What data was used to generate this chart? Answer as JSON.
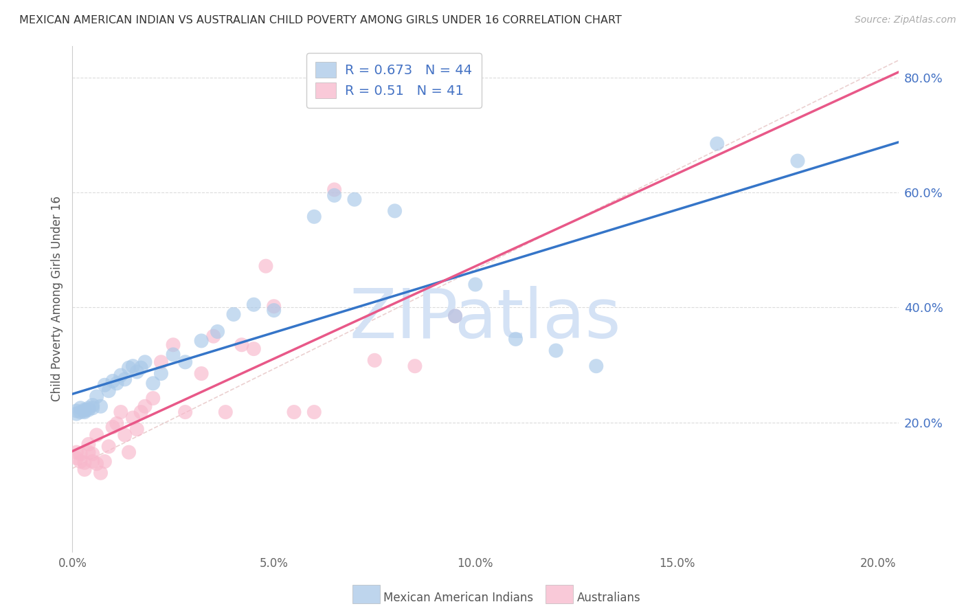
{
  "title": "MEXICAN AMERICAN INDIAN VS AUSTRALIAN CHILD POVERTY AMONG GIRLS UNDER 16 CORRELATION CHART",
  "source": "Source: ZipAtlas.com",
  "ylabel": "Child Poverty Among Girls Under 16",
  "legend_blue_label": "Mexican American Indians",
  "legend_pink_label": "Australians",
  "R_blue": 0.673,
  "N_blue": 44,
  "R_pink": 0.51,
  "N_pink": 41,
  "blue_scatter_color": "#a8c8e8",
  "pink_scatter_color": "#f8b8cc",
  "blue_line_color": "#3575c8",
  "pink_line_color": "#e85888",
  "diag_line_color": "#e8c8c8",
  "watermark": "ZIPatlas",
  "watermark_color": "#d4e2f5",
  "xlim": [
    0.0,
    0.205
  ],
  "ylim": [
    -0.025,
    0.855
  ],
  "yticks_right": [
    0.2,
    0.4,
    0.6,
    0.8
  ],
  "xtick_vals": [
    0.0,
    0.05,
    0.1,
    0.15,
    0.2
  ],
  "background_color": "#ffffff",
  "grid_color": "#cccccc",
  "blue_x": [
    0.001,
    0.001,
    0.002,
    0.002,
    0.003,
    0.003,
    0.003,
    0.004,
    0.004,
    0.005,
    0.005,
    0.006,
    0.007,
    0.008,
    0.009,
    0.01,
    0.011,
    0.012,
    0.013,
    0.014,
    0.015,
    0.016,
    0.017,
    0.018,
    0.02,
    0.022,
    0.025,
    0.028,
    0.032,
    0.036,
    0.04,
    0.045,
    0.05,
    0.06,
    0.065,
    0.07,
    0.08,
    0.095,
    0.1,
    0.11,
    0.12,
    0.13,
    0.16,
    0.18
  ],
  "blue_y": [
    0.215,
    0.22,
    0.218,
    0.225,
    0.22,
    0.222,
    0.218,
    0.225,
    0.222,
    0.23,
    0.225,
    0.245,
    0.228,
    0.265,
    0.255,
    0.272,
    0.268,
    0.282,
    0.275,
    0.295,
    0.298,
    0.288,
    0.295,
    0.305,
    0.268,
    0.285,
    0.318,
    0.305,
    0.342,
    0.358,
    0.388,
    0.405,
    0.395,
    0.558,
    0.595,
    0.588,
    0.568,
    0.385,
    0.44,
    0.345,
    0.325,
    0.298,
    0.685,
    0.655
  ],
  "pink_x": [
    0.001,
    0.001,
    0.002,
    0.002,
    0.003,
    0.003,
    0.004,
    0.004,
    0.005,
    0.005,
    0.006,
    0.006,
    0.007,
    0.008,
    0.009,
    0.01,
    0.011,
    0.012,
    0.013,
    0.014,
    0.015,
    0.016,
    0.017,
    0.018,
    0.02,
    0.022,
    0.025,
    0.028,
    0.032,
    0.035,
    0.038,
    0.042,
    0.045,
    0.048,
    0.05,
    0.055,
    0.06,
    0.065,
    0.075,
    0.085,
    0.095
  ],
  "pink_y": [
    0.148,
    0.138,
    0.132,
    0.145,
    0.118,
    0.13,
    0.162,
    0.148,
    0.145,
    0.132,
    0.178,
    0.128,
    0.112,
    0.132,
    0.158,
    0.192,
    0.198,
    0.218,
    0.178,
    0.148,
    0.208,
    0.188,
    0.218,
    0.228,
    0.242,
    0.305,
    0.335,
    0.218,
    0.285,
    0.35,
    0.218,
    0.335,
    0.328,
    0.472,
    0.402,
    0.218,
    0.218,
    0.605,
    0.308,
    0.298,
    0.385
  ]
}
